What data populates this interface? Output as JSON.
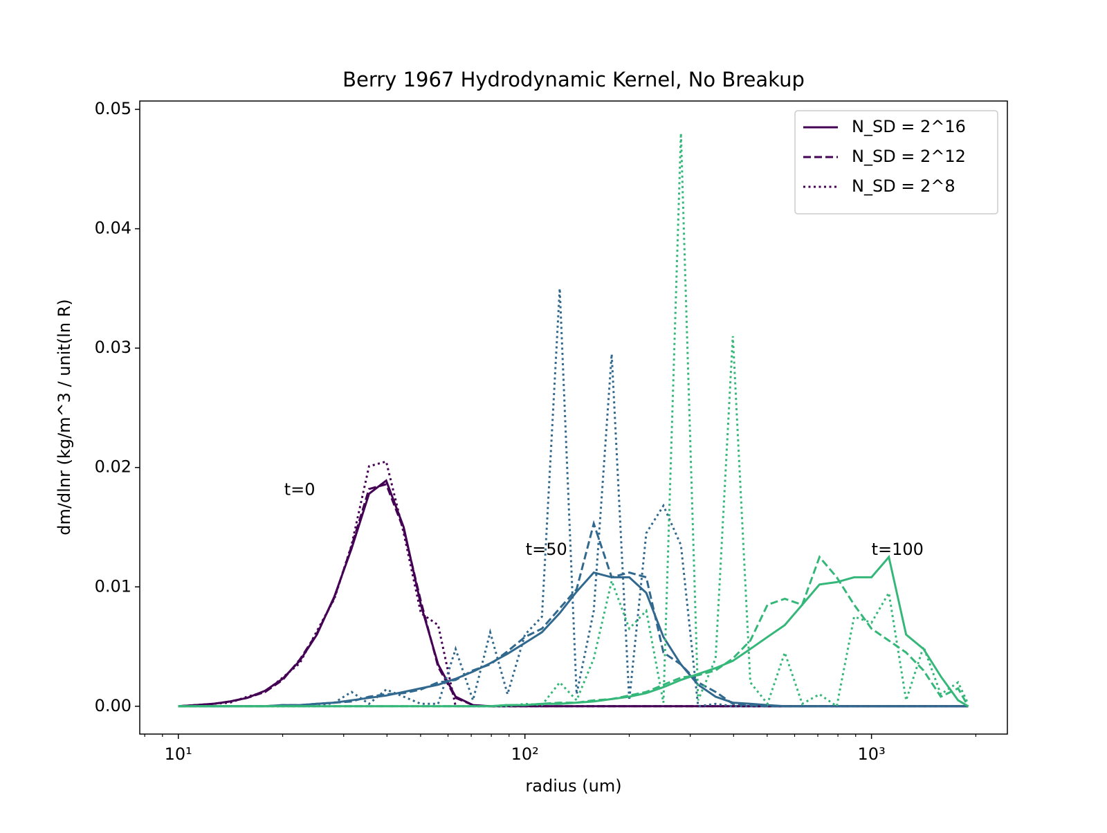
{
  "chart_data": {
    "type": "line",
    "title": "Berry 1967 Hydrodynamic Kernel, No Breakup",
    "xlabel": "radius (um)",
    "ylabel": "dm/dlnr (kg/m^3 / unit(ln R)",
    "xscale": "log",
    "xlim": [
      7.74,
      2466
    ],
    "ylim": [
      -0.00233,
      0.0507
    ],
    "xticks": [
      {
        "value": 10,
        "label": "10¹"
      },
      {
        "value": 100,
        "label": "10²"
      },
      {
        "value": 1000,
        "label": "10³"
      }
    ],
    "xminorticks": [
      8,
      9,
      20,
      30,
      40,
      50,
      60,
      70,
      80,
      90,
      200,
      300,
      400,
      500,
      600,
      700,
      800,
      900,
      2000
    ],
    "yticks": [
      {
        "value": 0,
        "label": "0.00"
      },
      0.01,
      0.02,
      0.03,
      0.04,
      0.05
    ],
    "x": [
      10,
      11.2,
      12.6,
      14.1,
      15.8,
      17.8,
      20,
      22.4,
      25.1,
      28.2,
      31.6,
      35.5,
      39.8,
      44.7,
      50.1,
      56.2,
      63.1,
      70.8,
      79.4,
      89.1,
      100,
      112,
      126,
      141,
      158,
      178,
      200,
      224,
      251,
      282,
      316,
      355,
      398,
      447,
      501,
      562,
      631,
      708,
      794,
      891,
      1000,
      1122,
      1259,
      1413,
      1585,
      1778,
      1900
    ],
    "series": [
      {
        "color": "#440154",
        "style": "solid",
        "values": [
          0,
          0.0001,
          0.0002,
          0.0004,
          0.0007,
          0.0013,
          0.0023,
          0.0038,
          0.006,
          0.0092,
          0.0132,
          0.0178,
          0.0189,
          0.015,
          0.0085,
          0.0035,
          0.0008,
          0.0001,
          0,
          0,
          0,
          0,
          0,
          0,
          0,
          0,
          0,
          0,
          0,
          0,
          0,
          0,
          0,
          0,
          0,
          0,
          0,
          0,
          0,
          0,
          0,
          0,
          0,
          0,
          0,
          0,
          0
        ]
      },
      {
        "color": "#440154",
        "style": "dashed",
        "values": [
          0,
          0.0001,
          0.0002,
          0.0004,
          0.0007,
          0.0012,
          0.0022,
          0.0039,
          0.0061,
          0.0091,
          0.0134,
          0.0182,
          0.0186,
          0.0148,
          0.0088,
          0.0033,
          0.0007,
          0.0001,
          0,
          0,
          0,
          0,
          0,
          0,
          0,
          0,
          0,
          0,
          0,
          0,
          0,
          0,
          0,
          0,
          0,
          0,
          0,
          0,
          0,
          0,
          0,
          0,
          0,
          0,
          0,
          0,
          0
        ]
      },
      {
        "color": "#440154",
        "style": "dotted",
        "values": [
          0,
          0.0001,
          0.0002,
          0.0003,
          0.0008,
          0.0012,
          0.0024,
          0.0036,
          0.0063,
          0.009,
          0.0135,
          0.0201,
          0.0205,
          0.0145,
          0.0078,
          0.0068,
          0,
          0,
          0,
          0,
          0,
          0,
          0,
          0,
          0,
          0,
          0,
          0,
          0,
          0,
          0,
          0,
          0,
          0,
          0,
          0,
          0,
          0,
          0,
          0,
          0,
          0,
          0,
          0,
          0,
          0,
          0
        ]
      },
      {
        "color": "#31688e",
        "style": "solid",
        "values": [
          0,
          0,
          0,
          0,
          0,
          0,
          0.0001,
          0.0001,
          0.0002,
          0.0003,
          0.0005,
          0.0007,
          0.0009,
          0.0012,
          0.0015,
          0.0018,
          0.0023,
          0.0029,
          0.0036,
          0.0044,
          0.0053,
          0.0062,
          0.0078,
          0.0096,
          0.0112,
          0.0108,
          0.0108,
          0.0095,
          0.0058,
          0.0035,
          0.0018,
          0.0008,
          0.0003,
          0.0002,
          0.0001,
          0,
          0,
          0,
          0,
          0,
          0,
          0,
          0,
          0,
          0,
          0,
          0
        ]
      },
      {
        "color": "#31688e",
        "style": "dashed",
        "values": [
          0,
          0,
          0,
          0,
          0,
          0,
          0.0001,
          0.0001,
          0.0002,
          0.0003,
          0.0004,
          0.0008,
          0.001,
          0.0011,
          0.0014,
          0.002,
          0.0022,
          0.003,
          0.0035,
          0.0046,
          0.0058,
          0.0065,
          0.0082,
          0.0098,
          0.0153,
          0.0108,
          0.0112,
          0.0108,
          0.0045,
          0.0035,
          0.002,
          0.0012,
          0.0002,
          0.0001,
          0,
          0,
          0,
          0,
          0,
          0,
          0,
          0,
          0,
          0,
          0,
          0,
          0
        ]
      },
      {
        "color": "#31688e",
        "style": "dotted",
        "values": [
          0,
          0,
          0,
          0,
          0,
          0,
          0,
          0,
          0,
          0.0003,
          0.0012,
          0.0002,
          0.0014,
          0.0008,
          0.0002,
          0.0002,
          0.0048,
          0.0005,
          0.0062,
          0.001,
          0.006,
          0.0075,
          0.035,
          0.001,
          0.008,
          0.0295,
          0.0005,
          0.0145,
          0.0168,
          0.0135,
          0,
          0.0002,
          0,
          0,
          0,
          0,
          0,
          0,
          0,
          0,
          0,
          0,
          0,
          0,
          0,
          0,
          0
        ]
      },
      {
        "color": "#35b779",
        "style": "solid",
        "values": [
          0,
          0,
          0,
          0,
          0,
          0,
          0,
          0,
          0,
          0,
          0,
          0,
          0,
          0,
          0,
          0,
          0,
          0,
          0,
          0.0001,
          0.0001,
          0.0002,
          0.0002,
          0.0003,
          0.0004,
          0.0006,
          0.0008,
          0.0011,
          0.0016,
          0.0022,
          0.0027,
          0.0032,
          0.0038,
          0.0048,
          0.0058,
          0.0068,
          0.0085,
          0.0102,
          0.0104,
          0.0108,
          0.0108,
          0.0125,
          0.006,
          0.0048,
          0.0025,
          0.0005,
          0
        ]
      },
      {
        "color": "#35b779",
        "style": "dashed",
        "values": [
          0,
          0,
          0,
          0,
          0,
          0,
          0,
          0,
          0,
          0,
          0,
          0,
          0,
          0,
          0,
          0,
          0,
          0,
          0,
          0.0001,
          0.0001,
          0.0002,
          0.0003,
          0.0003,
          0.0005,
          0.0006,
          0.0009,
          0.0012,
          0.0018,
          0.0024,
          0.0026,
          0.003,
          0.004,
          0.0055,
          0.0085,
          0.009,
          0.0085,
          0.0125,
          0.0108,
          0.0085,
          0.0065,
          0.0055,
          0.0045,
          0.003,
          0.0008,
          0.0015,
          0
        ]
      },
      {
        "color": "#35b779",
        "style": "dotted",
        "values": [
          0,
          0,
          0,
          0,
          0,
          0,
          0,
          0,
          0,
          0,
          0,
          0,
          0,
          0,
          0,
          0,
          0,
          0,
          0,
          0,
          0.0002,
          0.0001,
          0.002,
          0.0005,
          0.004,
          0.0105,
          0.0065,
          0.008,
          0.0003,
          0.048,
          0.0005,
          0.004,
          0.031,
          0.002,
          0.0002,
          0.0045,
          0.0002,
          0.001,
          0,
          0.0075,
          0.007,
          0.0095,
          0.0005,
          0.005,
          0.001,
          0.002,
          0.0002
        ]
      }
    ],
    "legend": {
      "loc": "upper right",
      "entries": [
        {
          "name": "N_SD = 2^16",
          "color": "#440154",
          "style": "solid"
        },
        {
          "name": "N_SD = 2^12",
          "color": "#440154",
          "style": "dashed"
        },
        {
          "name": "N_SD = 2^8",
          "color": "#440154",
          "style": "dotted"
        }
      ]
    },
    "annotations": [
      {
        "text": "t=0",
        "x": 20.2,
        "y": 0.0181
      },
      {
        "text": "t=50",
        "x": 100.5,
        "y": 0.0131
      },
      {
        "text": "t=100",
        "x": 1000,
        "y": 0.0131
      }
    ]
  }
}
